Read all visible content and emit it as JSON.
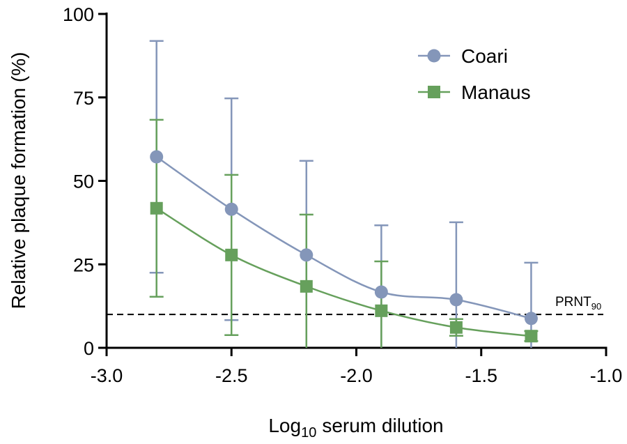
{
  "chart_data": {
    "type": "line",
    "x_label": {
      "main": "Log",
      "sub": "10",
      "rest": "serum dilution"
    },
    "y_label": "Relative plaque formation (%)",
    "x": [
      -2.8,
      -2.5,
      -2.2,
      -1.9,
      -1.6,
      -1.3
    ],
    "series": [
      {
        "name": "Coari",
        "color": "#8496b9",
        "marker": "circle",
        "values": [
          57.2,
          41.5,
          27.8,
          16.7,
          14.4,
          8.8
        ],
        "errors": [
          34.7,
          33.2,
          28.2,
          20,
          23.2,
          16.7
        ]
      },
      {
        "name": "Manaus",
        "color": "#66a05c",
        "marker": "square",
        "values": [
          41.8,
          27.8,
          18.4,
          11.1,
          6.1,
          3.5
        ],
        "errors": [
          26.5,
          24,
          21.5,
          14.8,
          2.5,
          1.5
        ]
      }
    ],
    "reference_line": {
      "value": 10,
      "text": "PRNT",
      "sub": "90"
    },
    "xlim": [
      -3,
      -1
    ],
    "xticks": [
      {
        "value": -3,
        "label": "-3.0"
      },
      -2.5,
      {
        "value": -2,
        "label": "-2.0"
      },
      -1.5,
      {
        "value": -1,
        "label": "-1.0"
      }
    ],
    "ylim": [
      0,
      100
    ],
    "yticks": [
      0,
      25,
      50,
      75,
      100
    ],
    "legend": "top-right"
  }
}
